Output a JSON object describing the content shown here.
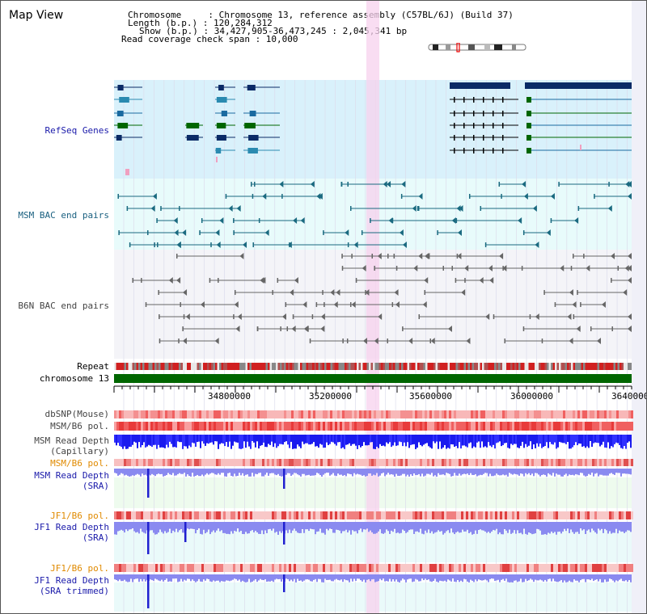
{
  "header": {
    "view_title": "Map View",
    "chromosome_line": "Chromosome     : Chromosome 13, reference assembly (C57BL/6J) (Build 37)",
    "length_line": "Length (b.p.) : 120,284,312",
    "show_line": "Show (b.p.) : 34,427,905-36,473,245 : 2,045,341 bp",
    "coverage_line": "Read coverage check span : 10,000"
  },
  "tracks": {
    "refseq_genes": "RefSeq Genes",
    "msm_bac": "MSM BAC end pairs",
    "b6n_bac": "B6N BAC end pairs",
    "repeat": "Repeat",
    "chromosome": "chromosome 13",
    "dbsnp": "dbSNP(Mouse)",
    "msm_b6_pol_1": "MSM/B6 pol.",
    "msm_read_depth_cap_1": "MSM Read Depth",
    "msm_read_depth_cap_2": "(Capillary)",
    "msm_b6_pol_2": "MSM/B6 pol.",
    "msm_read_depth_sra_1": "MSM Read Depth",
    "msm_read_depth_sra_2": "(SRA)",
    "jf1_b6_pol_1": "JF1/B6 pol.",
    "jf1_read_depth_sra_1": "JF1 Read Depth",
    "jf1_read_depth_sra_2": "(SRA)",
    "jf1_b6_pol_2": "JF1/B6 pol.",
    "jf1_read_depth_trim_1": "JF1 Read Depth",
    "jf1_read_depth_trim_2": "(SRA trimmed)"
  },
  "axis": {
    "ticks": [
      "34800000",
      "35200000",
      "35600000",
      "36000000",
      "36400000"
    ]
  },
  "colors": {
    "refseq_bg": "#d9f1fb",
    "msm_bac_bg": "#e8fbfb",
    "b6n_bac_bg": "#f4f4f8",
    "highlight": "#f7d2ee",
    "label_blue": "#1a1aaa",
    "label_teal": "#1a6080",
    "label_orange": "#e08a00",
    "chromosome_green": "#006600"
  }
}
